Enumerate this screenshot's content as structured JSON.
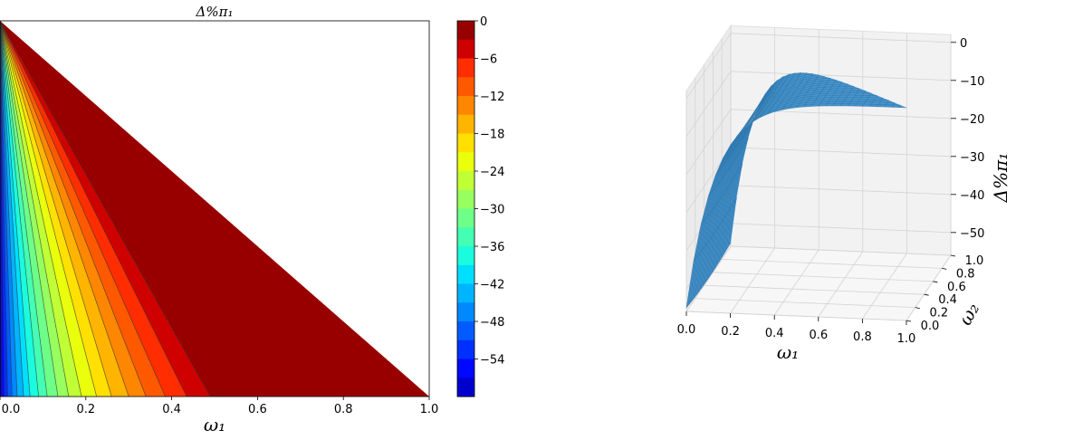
{
  "chart_data": [
    {
      "type": "contour",
      "title": "Δ%π₁",
      "xlabel": "ω₁",
      "xlim": [
        0.0,
        1.0
      ],
      "x_ticks": [
        "0.0",
        "0.2",
        "0.4",
        "0.6",
        "0.8",
        "1.0"
      ],
      "region": "triangle below line ω₂ = 1 − ω₁",
      "levels": [
        0,
        -3,
        -6,
        -9,
        -12,
        -15,
        -18,
        -21,
        -24,
        -27,
        -30,
        -33,
        -36,
        -39,
        -42,
        -45,
        -48,
        -51,
        -54,
        -57
      ],
      "boundary_x_at_bottom": [
        0.49,
        0.435,
        0.385,
        0.34,
        0.3,
        0.26,
        0.225,
        0.19,
        0.16,
        0.135,
        0.11,
        0.09,
        0.07,
        0.055,
        0.04,
        0.028,
        0.018,
        0.01,
        0.004
      ],
      "colormap": "jet",
      "colorbar": {
        "ticks": [
          "0",
          "−6",
          "−12",
          "−18",
          "−24",
          "−30",
          "−36",
          "−42",
          "−48",
          "−54"
        ],
        "colors": [
          "#980000",
          "#ce0000",
          "#ff2d00",
          "#ff5900",
          "#ff8600",
          "#ffb400",
          "#ffe000",
          "#eaff0c",
          "#c0ff36",
          "#97ff60",
          "#6eff89",
          "#44ffb3",
          "#1afcdd",
          "#00dfff",
          "#00b4ff",
          "#0089ff",
          "#005cff",
          "#0030ff",
          "#0008ff",
          "#0000ce"
        ]
      }
    },
    {
      "type": "surface3d",
      "xlabel": "ω₁",
      "ylabel": "ω₂",
      "zlabel": "Δ%π₁",
      "x_ticks": [
        "0.0",
        "0.2",
        "0.4",
        "0.6",
        "0.8",
        "1.0"
      ],
      "y_ticks": [
        "0.0",
        "0.2",
        "0.4",
        "0.6",
        "0.8",
        "1.0"
      ],
      "z_ticks": [
        "0",
        "−10",
        "−20",
        "−30",
        "−40",
        "−50"
      ],
      "zlim": [
        -58,
        2
      ],
      "surface_color": "#3b8dc9"
    }
  ]
}
